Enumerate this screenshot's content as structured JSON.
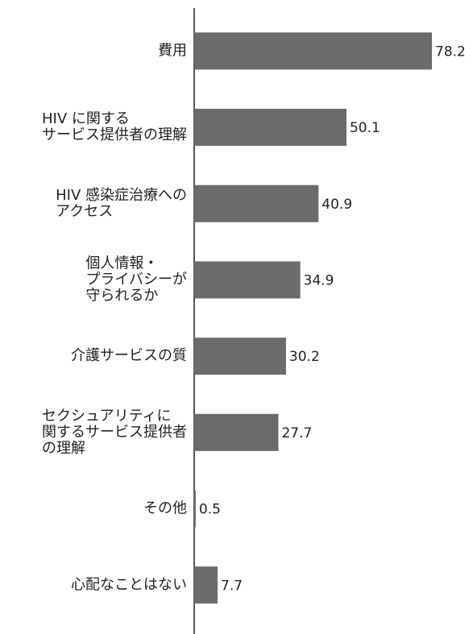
{
  "chart_data": {
    "type": "barh",
    "categories": [
      [
        "費用"
      ],
      [
        "HIV に関する",
        "サービス提供者の理解"
      ],
      [
        "HIV 感染症治療への",
        "アクセス"
      ],
      [
        "個人情報・",
        "プライバシーが",
        "守られるか"
      ],
      [
        "介護サービスの質"
      ],
      [
        "セクシュアリティに",
        "関するサービス提供者",
        "の理解"
      ],
      [
        "その他"
      ],
      [
        "心配なことはない"
      ]
    ],
    "values": [
      78.2,
      50.1,
      40.9,
      34.9,
      30.2,
      27.7,
      0.5,
      7.7
    ],
    "value_labels": [
      "78.2",
      "50.1",
      "40.9",
      "34.9",
      "30.2",
      "27.7",
      "0.5",
      "7.7"
    ],
    "color": "#6b6b6b"
  }
}
